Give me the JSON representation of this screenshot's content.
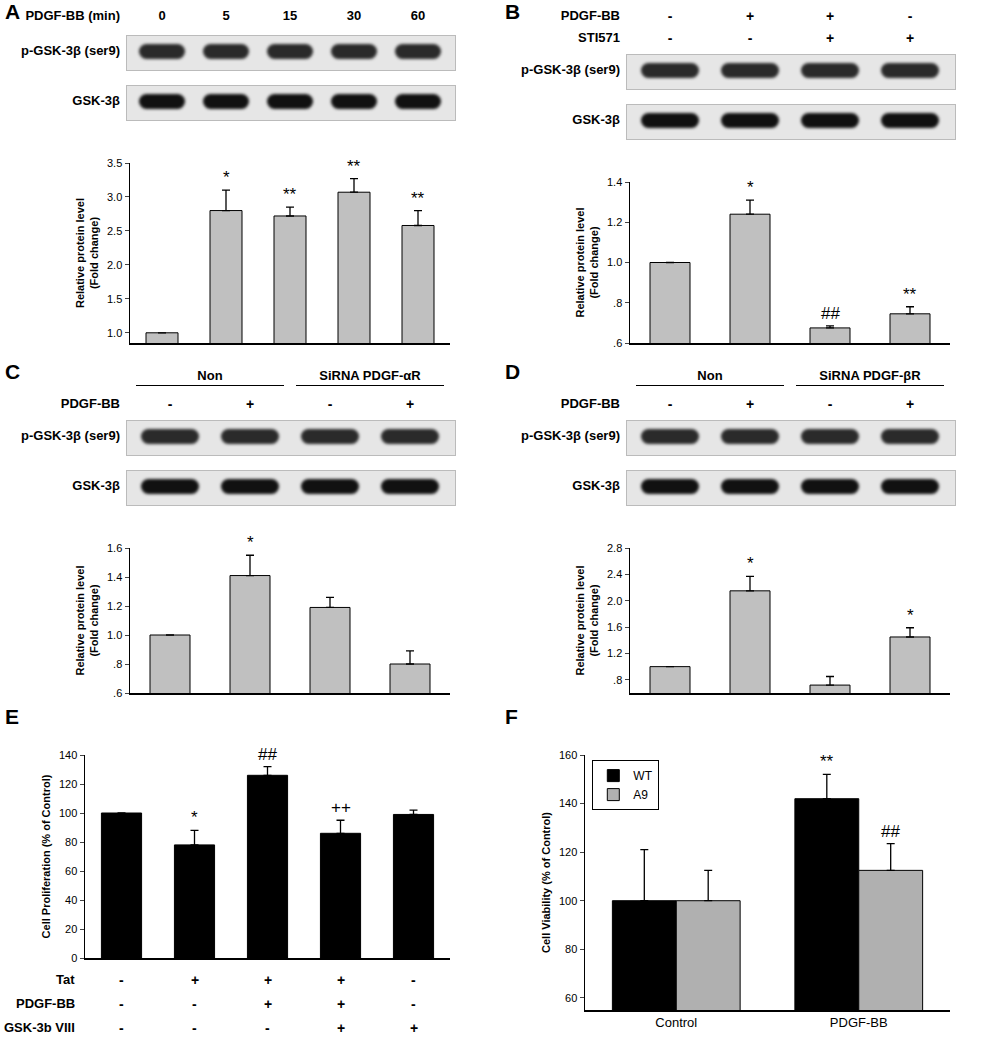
{
  "chart_data": [
    {
      "panel": "A",
      "type": "bar",
      "header": "PDGF-BB (min)",
      "categories": [
        "0",
        "5",
        "15",
        "30",
        "60"
      ],
      "blot_rows": [
        "p-GSK-3β (ser9)",
        "GSK-3β"
      ],
      "ylabel": [
        "Relative protein level",
        "(Fold change)"
      ],
      "values": [
        1,
        2.8,
        2.72,
        3.07,
        2.58
      ],
      "errors": [
        0,
        0.3,
        0.13,
        0.2,
        0.22
      ],
      "marks": [
        null,
        "*",
        "**",
        "**",
        "**"
      ],
      "color": "#c0c0c0",
      "ylim": [
        0.85,
        3.5
      ],
      "yticks": [
        {
          "value": 1,
          "label": "1.0"
        },
        1.5,
        {
          "value": 2,
          "label": "2.0"
        },
        2.5,
        {
          "value": 3,
          "label": "3.0"
        },
        3.5
      ],
      "tick_labels": "y"
    },
    {
      "panel": "B",
      "type": "bar",
      "categories": [
        null,
        null,
        null,
        null
      ],
      "conditions": [
        {
          "name": "PDGF-BB",
          "signs": [
            "-",
            "+",
            "+",
            "-"
          ]
        },
        {
          "name": "STI571",
          "signs": [
            "-",
            "-",
            "+",
            "+"
          ]
        }
      ],
      "blot_rows": [
        "p-GSK-3β (ser9)",
        "GSK-3β"
      ],
      "ylabel": [
        "Relative protein level",
        "(Fold change)"
      ],
      "values": [
        1,
        1.24,
        0.675,
        0.745
      ],
      "errors": [
        0,
        0.07,
        0.01,
        0.035
      ],
      "marks": [
        null,
        "*",
        "##",
        "**"
      ],
      "color": "#c0c0c0",
      "ylim": [
        0.6,
        1.4
      ],
      "yticks": [
        {
          "value": 0.6,
          "label": ".6"
        },
        {
          "value": 0.8,
          "label": ".8"
        },
        {
          "value": 1,
          "label": "1.0"
        },
        1.2,
        1.4
      ],
      "tick_labels": "y"
    },
    {
      "panel": "C",
      "type": "bar",
      "categories": [
        null,
        null,
        null,
        null
      ],
      "groups": [
        {
          "label": "Non",
          "lanes": 2
        },
        {
          "label": "SiRNA PDGF-αR",
          "lanes": 2
        }
      ],
      "conditions": [
        {
          "name": "PDGF-BB",
          "signs": [
            "-",
            "+",
            "-",
            "+"
          ]
        }
      ],
      "blot_rows": [
        "p-GSK-3β (ser9)",
        "GSK-3β"
      ],
      "ylabel": [
        "Relative protein level",
        "(Fold change)"
      ],
      "values": [
        1,
        1.41,
        1.19,
        0.8
      ],
      "errors": [
        0,
        0.14,
        0.07,
        0.09
      ],
      "marks": [
        null,
        "*",
        null,
        null
      ],
      "color": "#c0c0c0",
      "ylim": [
        0.6,
        1.6
      ],
      "yticks": [
        {
          "value": 0.6,
          "label": ".6"
        },
        {
          "value": 0.8,
          "label": ".8"
        },
        {
          "value": 1,
          "label": "1.0"
        },
        1.2,
        1.4,
        1.6
      ],
      "tick_labels": "y"
    },
    {
      "panel": "D",
      "type": "bar",
      "categories": [
        null,
        null,
        null,
        null
      ],
      "groups": [
        {
          "label": "Non",
          "lanes": 2
        },
        {
          "label": "SiRNA PDGF-βR",
          "lanes": 2
        }
      ],
      "conditions": [
        {
          "name": "PDGF-BB",
          "signs": [
            "-",
            "+",
            "-",
            "+"
          ]
        }
      ],
      "blot_rows": [
        "p-GSK-3β (ser9)",
        "GSK-3β"
      ],
      "ylabel": [
        "Relative protein level",
        "(Fold change)"
      ],
      "values": [
        1,
        2.15,
        0.72,
        1.45
      ],
      "errors": [
        0,
        0.22,
        0.13,
        0.14
      ],
      "marks": [
        null,
        "*",
        null,
        "*"
      ],
      "color": "#c0c0c0",
      "ylim": [
        0.6,
        2.8
      ],
      "yticks": [
        {
          "value": 0.8,
          "label": ".8"
        },
        1.2,
        1.6,
        {
          "value": 2,
          "label": "2.0"
        },
        2.4,
        2.8
      ],
      "tick_labels": "y"
    },
    {
      "panel": "E",
      "type": "bar",
      "categories": [
        null,
        null,
        null,
        null,
        null
      ],
      "conditions": [
        {
          "name": "Tat",
          "signs": [
            "-",
            "+",
            "+",
            "+",
            "-"
          ]
        },
        {
          "name": "PDGF-BB",
          "signs": [
            "-",
            "-",
            "+",
            "+",
            "-"
          ]
        },
        {
          "name": "GSK-3b VIII",
          "signs": [
            "-",
            "-",
            "-",
            "+",
            "+"
          ]
        }
      ],
      "ylabel": [
        "Cell Proliferation (% of Control)"
      ],
      "values": [
        100,
        78,
        126,
        86,
        99
      ],
      "errors": [
        0,
        10,
        6,
        9,
        3
      ],
      "marks": [
        null,
        "*",
        "##",
        "++",
        null
      ],
      "color": "#000000",
      "ylim": [
        0,
        140
      ],
      "yticks": [
        0,
        20,
        40,
        60,
        80,
        100,
        120,
        140
      ],
      "tick_labels": "y"
    },
    {
      "panel": "F",
      "type": "bar",
      "categories": [
        "Control",
        "PDGF-BB"
      ],
      "ylabel": [
        "Cell Viability (% of Control)"
      ],
      "series": [
        {
          "name": "WT",
          "color": "#000000",
          "values": [
            100,
            142
          ],
          "errors": [
            21,
            10
          ],
          "marks": [
            null,
            "**"
          ]
        },
        {
          "name": "A9",
          "color": "#b0b0b0",
          "values": [
            100,
            112.5
          ],
          "errors": [
            12.5,
            11
          ],
          "marks": [
            null,
            "##"
          ]
        }
      ],
      "ylim": [
        55,
        160
      ],
      "yticks": [
        60,
        80,
        100,
        120,
        140,
        160
      ],
      "legend": "top-left"
    }
  ]
}
